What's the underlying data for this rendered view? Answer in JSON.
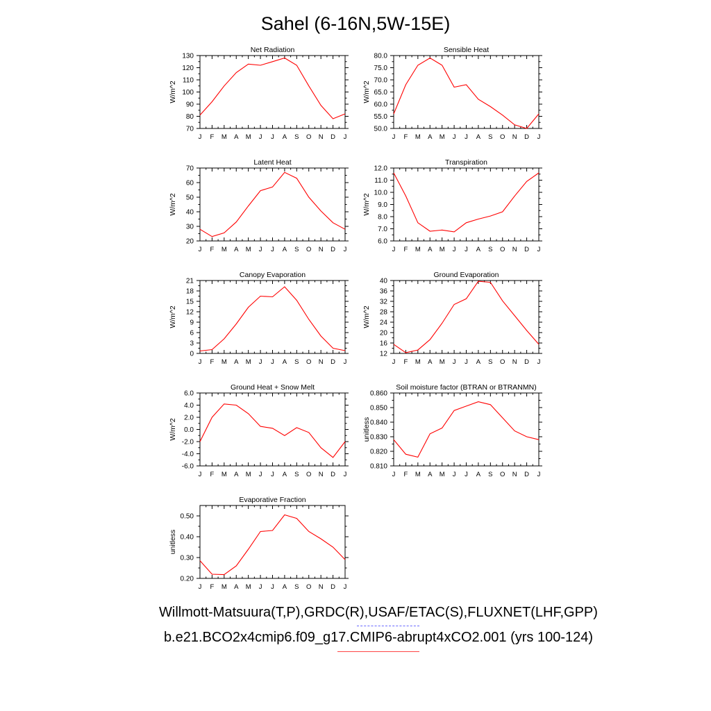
{
  "page": {
    "title": "Sahel (6-16N,5W-15E)",
    "footer_obs": "Willmott-Matsuura(T,P),GRDC(R),USAF/ETAC(S),FLUXNET(LHF,GPP)",
    "footer_case": "b.e21.BCO2x4cmip6.f09_g17.CMIP6-abrupt4xCO2.001 (yrs 100-124)"
  },
  "colors": {
    "series": "#ff0000",
    "obs_line": "#6666ff",
    "axis": "#000000"
  },
  "chart_data": [
    {
      "type": "line",
      "title": "Net Radiation",
      "ylabel": "W/m^2",
      "categories": [
        "J",
        "F",
        "M",
        "A",
        "M",
        "J",
        "J",
        "A",
        "S",
        "O",
        "N",
        "D",
        "J"
      ],
      "ylim": [
        70,
        130
      ],
      "yticks": [
        70,
        80,
        90,
        100,
        110,
        120,
        130
      ],
      "ytick_labels": [
        "70",
        "80",
        "90",
        "100",
        "110",
        "120",
        "130"
      ],
      "series": [
        {
          "values": [
            81,
            92,
            105,
            116,
            123,
            122,
            125,
            128,
            122,
            105,
            89,
            78,
            82
          ]
        }
      ]
    },
    {
      "type": "line",
      "title": "Sensible Heat",
      "ylabel": "W/m^2",
      "categories": [
        "J",
        "F",
        "M",
        "A",
        "M",
        "J",
        "J",
        "A",
        "S",
        "O",
        "N",
        "D",
        "J"
      ],
      "ylim": [
        50,
        80
      ],
      "yticks": [
        50,
        55,
        60,
        65,
        70,
        75,
        80
      ],
      "ytick_labels": [
        "50.0",
        "55.0",
        "60.0",
        "65.0",
        "70.0",
        "75.0",
        "80.0"
      ],
      "series": [
        {
          "values": [
            56,
            68,
            76,
            79,
            76,
            67,
            68,
            62,
            59,
            55.5,
            51.5,
            50,
            56
          ]
        }
      ]
    },
    {
      "type": "line",
      "title": "Latent Heat",
      "ylabel": "W/m^2",
      "categories": [
        "J",
        "F",
        "M",
        "A",
        "M",
        "J",
        "J",
        "A",
        "S",
        "O",
        "N",
        "D",
        "J"
      ],
      "ylim": [
        20,
        70
      ],
      "yticks": [
        20,
        30,
        40,
        50,
        60,
        70
      ],
      "ytick_labels": [
        "20",
        "30",
        "40",
        "50",
        "60",
        "70"
      ],
      "series": [
        {
          "values": [
            28,
            23,
            25.5,
            33,
            44,
            54.5,
            57,
            67,
            63,
            50,
            40.5,
            32.5,
            28
          ]
        }
      ]
    },
    {
      "type": "line",
      "title": "Transpiration",
      "ylabel": "W/m^2",
      "categories": [
        "J",
        "F",
        "M",
        "A",
        "M",
        "J",
        "J",
        "A",
        "S",
        "O",
        "N",
        "D",
        "J"
      ],
      "ylim": [
        6,
        12
      ],
      "yticks": [
        6,
        7,
        8,
        9,
        10,
        11,
        12
      ],
      "ytick_labels": [
        "6.0",
        "7.0",
        "8.0",
        "9.0",
        "10.0",
        "11.0",
        "12.0"
      ],
      "series": [
        {
          "values": [
            11.6,
            9.7,
            7.5,
            6.8,
            6.9,
            6.75,
            7.5,
            7.8,
            8.05,
            8.4,
            9.7,
            10.9,
            11.6
          ]
        }
      ]
    },
    {
      "type": "line",
      "title": "Canopy Evaporation",
      "ylabel": "W/m^2",
      "categories": [
        "J",
        "F",
        "M",
        "A",
        "M",
        "J",
        "J",
        "A",
        "S",
        "O",
        "N",
        "D",
        "J"
      ],
      "ylim": [
        0,
        21
      ],
      "yticks": [
        0,
        3,
        6,
        9,
        12,
        15,
        18,
        21
      ],
      "ytick_labels": [
        "0",
        "3",
        "6",
        "9",
        "12",
        "15",
        "18",
        "21"
      ],
      "series": [
        {
          "values": [
            0.7,
            1.1,
            4.2,
            8.5,
            13.3,
            16.5,
            16.3,
            19.2,
            15.3,
            9.8,
            5.0,
            1.5,
            0.8
          ]
        }
      ]
    },
    {
      "type": "line",
      "title": "Ground Evaporation",
      "ylabel": "W/m^2",
      "categories": [
        "J",
        "F",
        "M",
        "A",
        "M",
        "J",
        "J",
        "A",
        "S",
        "O",
        "N",
        "D",
        "J"
      ],
      "ylim": [
        12,
        40
      ],
      "yticks": [
        12,
        16,
        20,
        24,
        28,
        32,
        36,
        40
      ],
      "ytick_labels": [
        "12",
        "16",
        "20",
        "24",
        "28",
        "32",
        "36",
        "40"
      ],
      "series": [
        {
          "values": [
            15.5,
            12.3,
            13.3,
            17.3,
            23.6,
            30.8,
            33.0,
            39.7,
            39.3,
            32.2,
            26.5,
            20.8,
            15.5
          ]
        }
      ]
    },
    {
      "type": "line",
      "title": "Ground Heat + Snow Melt",
      "ylabel": "W/m^2",
      "categories": [
        "J",
        "F",
        "M",
        "A",
        "M",
        "J",
        "J",
        "A",
        "S",
        "O",
        "N",
        "D",
        "J"
      ],
      "ylim": [
        -6,
        6
      ],
      "yticks": [
        -6,
        -4,
        -2,
        0,
        2,
        4,
        6
      ],
      "ytick_labels": [
        "-6.0",
        "-4.0",
        "-2.0",
        "0.0",
        "2.0",
        "4.0",
        "6.0"
      ],
      "series": [
        {
          "values": [
            -2.0,
            2.0,
            4.2,
            4.0,
            2.6,
            0.5,
            0.2,
            -1.0,
            0.3,
            -0.5,
            -3.0,
            -4.6,
            -2.0
          ]
        }
      ]
    },
    {
      "type": "line",
      "title": "Soil moisture factor (BTRAN or BTRANMN)",
      "ylabel": "unitless",
      "categories": [
        "J",
        "F",
        "M",
        "A",
        "M",
        "J",
        "J",
        "A",
        "S",
        "O",
        "N",
        "D",
        "J"
      ],
      "ylim": [
        0.81,
        0.86
      ],
      "yticks": [
        0.81,
        0.82,
        0.83,
        0.84,
        0.85,
        0.86
      ],
      "ytick_labels": [
        "0.810",
        "0.820",
        "0.830",
        "0.840",
        "0.850",
        "0.860"
      ],
      "series": [
        {
          "values": [
            0.828,
            0.818,
            0.816,
            0.832,
            0.836,
            0.848,
            0.851,
            0.854,
            0.852,
            0.843,
            0.834,
            0.83,
            0.828
          ]
        }
      ]
    },
    {
      "type": "line",
      "title": "Evaporative Fraction",
      "ylabel": "unitless",
      "categories": [
        "J",
        "F",
        "M",
        "A",
        "M",
        "J",
        "J",
        "A",
        "S",
        "O",
        "N",
        "D",
        "J"
      ],
      "ylim": [
        0.2,
        0.55
      ],
      "yticks": [
        0.2,
        0.3,
        0.4,
        0.5
      ],
      "ytick_labels": [
        "0.20",
        "0.30",
        "0.40",
        "0.50"
      ],
      "series": [
        {
          "values": [
            0.285,
            0.22,
            0.218,
            0.26,
            0.34,
            0.425,
            0.43,
            0.505,
            0.488,
            0.425,
            0.39,
            0.35,
            0.29
          ]
        }
      ]
    }
  ]
}
